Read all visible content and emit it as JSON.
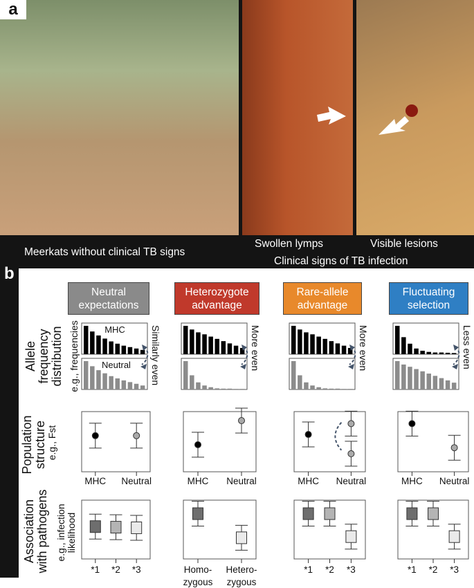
{
  "panel_a": {
    "label": "a",
    "captions": {
      "left": "Meerkats without clinical TB signs",
      "mid": "Swollen lymps",
      "right": "Visible lesions",
      "bottom": "Clinical signs of TB infection"
    }
  },
  "panel_b": {
    "label": "b",
    "row_labels": {
      "allele": [
        "Allele",
        "frequency",
        "distribution"
      ],
      "allele_sub": "e.g., frequencies",
      "pop": [
        "Population",
        "structure"
      ],
      "pop_sub": "e.g., Fst",
      "assoc": [
        "Association",
        "with pathogens"
      ],
      "assoc_sub": [
        "e.g., infection",
        "likelihood"
      ]
    },
    "hist_labels": {
      "mhc": "MHC",
      "neutral": "Neutral"
    },
    "colors": {
      "mhc_bar": "#000000",
      "neutral_bar": "#8c8c8c",
      "arrow": "#44546a"
    },
    "columns": [
      {
        "title": [
          "Neutral",
          "expectations"
        ],
        "color": "#8a8a8a",
        "evenness": "Similarly even",
        "mhc": [
          1,
          0.8,
          0.66,
          0.55,
          0.45,
          0.37,
          0.3,
          0.25,
          0.2,
          0.15
        ],
        "neutral": [
          1,
          0.82,
          0.68,
          0.57,
          0.47,
          0.39,
          0.32,
          0.26,
          0.2,
          0.14
        ],
        "pop": [
          {
            "label": "MHC",
            "values": [
              0.6
            ]
          },
          {
            "label": "Neutral",
            "values": [
              0.6
            ]
          }
        ],
        "assoc_labels": [
          "*1",
          "*2",
          "*3"
        ],
        "assoc": [
          0.55,
          0.54,
          0.53
        ]
      },
      {
        "title": [
          "Heterozygote",
          "advantage"
        ],
        "color": "#c0392b",
        "evenness": "More even",
        "mhc": [
          1,
          0.87,
          0.77,
          0.7,
          0.62,
          0.54,
          0.46,
          0.38,
          0.3,
          0.22
        ],
        "neutral": [
          1,
          0.5,
          0.25,
          0.14,
          0.08,
          0.04,
          0.03,
          0.03,
          0.02,
          0.02
        ],
        "pop": [
          {
            "label": "MHC",
            "values": [
              0.45
            ]
          },
          {
            "label": "Neutral",
            "values": [
              0.85
            ]
          }
        ],
        "assoc_labels": [
          "Homo-\nzygous",
          "Hetero-\nzygous"
        ],
        "assoc": [
          0.77,
          0.36
        ]
      },
      {
        "title": [
          "Rare-allele",
          "advantage"
        ],
        "color": "#e8892b",
        "evenness": "More even",
        "mhc": [
          1,
          0.87,
          0.77,
          0.7,
          0.62,
          0.54,
          0.46,
          0.38,
          0.3,
          0.22
        ],
        "neutral": [
          1,
          0.5,
          0.25,
          0.14,
          0.08,
          0.04,
          0.03,
          0.03,
          0.02,
          0.02
        ],
        "pop": [
          {
            "label": "MHC",
            "values": [
              0.62
            ]
          },
          {
            "label": "Neutral",
            "values": [
              0.8,
              0.3
            ]
          }
        ],
        "assoc_labels": [
          "*1",
          "*2",
          "*3"
        ],
        "assoc": [
          0.77,
          0.77,
          0.38
        ]
      },
      {
        "title": [
          "Fluctuating",
          "selection"
        ],
        "color": "#2f7fc4",
        "evenness": "Less even",
        "mhc": [
          1,
          0.6,
          0.37,
          0.2,
          0.12,
          0.08,
          0.06,
          0.06,
          0.05,
          0.04
        ],
        "neutral": [
          1,
          0.88,
          0.8,
          0.72,
          0.64,
          0.56,
          0.48,
          0.4,
          0.32,
          0.24
        ],
        "pop": [
          {
            "label": "MHC",
            "values": [
              0.8
            ]
          },
          {
            "label": "Neutral",
            "values": [
              0.4
            ]
          }
        ],
        "assoc_labels": [
          "*1",
          "*2",
          "*3"
        ],
        "assoc": [
          0.77,
          0.77,
          0.38
        ]
      }
    ]
  }
}
